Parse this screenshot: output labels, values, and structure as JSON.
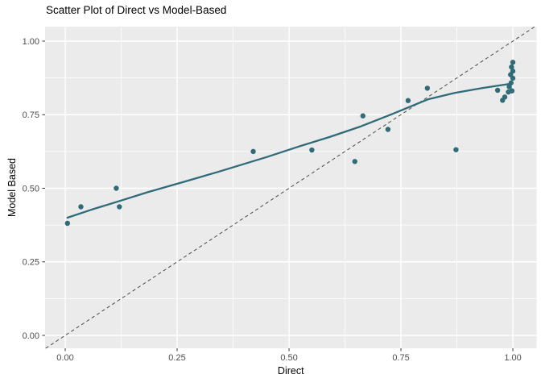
{
  "chart_data": {
    "type": "scatter",
    "title": "Scatter Plot of Direct vs Model-Based",
    "xlabel": "Direct",
    "ylabel": "Model Based",
    "xlim": [
      -0.045,
      1.053
    ],
    "ylim": [
      -0.0438,
      1.0493
    ],
    "x_ticks": {
      "values": [
        0,
        0.25,
        0.5,
        0.75,
        1.0
      ],
      "labels": [
        "0.00",
        "0.25",
        "0.50",
        "0.75",
        "1.00"
      ]
    },
    "y_ticks": {
      "values": [
        0,
        0.25,
        0.5,
        0.75,
        1.0
      ],
      "labels": [
        "0.00",
        "0.25",
        "0.50",
        "0.75",
        "1.00"
      ]
    },
    "x_minor": [
      0.125,
      0.375,
      0.625,
      0.875
    ],
    "y_minor": [
      0.125,
      0.375,
      0.625,
      0.875
    ],
    "grid": true,
    "legend": "none",
    "points": [
      [
        0.005,
        0.381
      ],
      [
        0.035,
        0.437
      ],
      [
        0.114,
        0.5
      ],
      [
        0.121,
        0.437
      ],
      [
        0.42,
        0.625
      ],
      [
        0.551,
        0.63
      ],
      [
        0.647,
        0.591
      ],
      [
        0.665,
        0.746
      ],
      [
        0.721,
        0.7
      ],
      [
        0.766,
        0.798
      ],
      [
        0.809,
        0.84
      ],
      [
        0.873,
        0.631
      ],
      [
        0.966,
        0.833
      ],
      [
        0.977,
        0.799
      ],
      [
        0.982,
        0.81
      ],
      [
        0.99,
        0.827
      ],
      [
        0.998,
        0.831
      ],
      [
        0.992,
        0.845
      ],
      [
        0.996,
        0.858
      ],
      [
        1.0,
        0.874
      ],
      [
        0.995,
        0.886
      ],
      [
        1.0,
        0.898
      ],
      [
        0.997,
        0.912
      ],
      [
        1.0,
        0.928
      ]
    ],
    "smooth_line": [
      [
        0.005,
        0.4
      ],
      [
        0.06,
        0.428
      ],
      [
        0.12,
        0.456
      ],
      [
        0.185,
        0.487
      ],
      [
        0.27,
        0.524
      ],
      [
        0.34,
        0.555
      ],
      [
        0.45,
        0.606
      ],
      [
        0.52,
        0.641
      ],
      [
        0.59,
        0.674
      ],
      [
        0.66,
        0.71
      ],
      [
        0.73,
        0.752
      ],
      [
        0.81,
        0.802
      ],
      [
        0.87,
        0.824
      ],
      [
        0.93,
        0.84
      ],
      [
        0.995,
        0.855
      ]
    ],
    "identity_line": {
      "intercept": 0,
      "slope": 1,
      "style": "dashed"
    },
    "colors": {
      "point": "#2F6B78",
      "smooth_line": "#2F6B78",
      "panel_background": "#EBEBEB",
      "gridline": "#FFFFFF",
      "identity_line": "#4A4A4A",
      "tick_label": "#4D4D4D",
      "tick_mark": "#333333",
      "axis_title": "#000000",
      "title": "#000000"
    }
  }
}
